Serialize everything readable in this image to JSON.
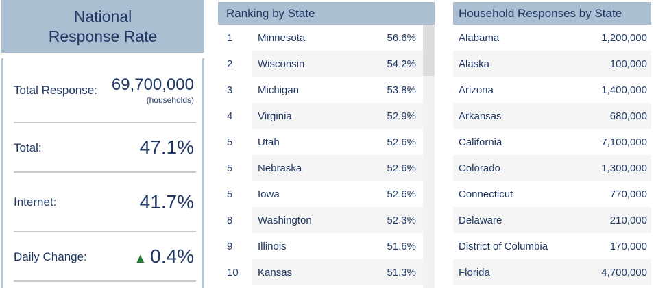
{
  "colors": {
    "header_bg": "#acbfd2",
    "text_navy": "#1f3864",
    "row_alt": "#f5f5f5",
    "divider": "#c9c9c9",
    "panel_border": "#b5c5d6",
    "trend_up_green": "#1e7b34",
    "scrollbar_track": "#f1f1f1",
    "scrollbar_thumb": "#dcdcdc"
  },
  "icons": {
    "up_triangle": "▲"
  },
  "national": {
    "title_line1": "National",
    "title_line2": "Response Rate",
    "stats": [
      {
        "label": "Total Response:",
        "value": "69,700,000",
        "sub": "(households)"
      },
      {
        "label": "Total:",
        "value": "47.1%"
      },
      {
        "label": "Internet:",
        "value": "41.7%"
      },
      {
        "label": "Daily Change:",
        "value": "0.4%",
        "trend": "up"
      }
    ]
  },
  "ranking": {
    "title": "Ranking by State",
    "columns": [
      "rank",
      "state",
      "response_rate"
    ],
    "rows": [
      {
        "rank": "1",
        "state": "Minnesota",
        "rate": "56.6%"
      },
      {
        "rank": "2",
        "state": "Wisconsin",
        "rate": "54.2%"
      },
      {
        "rank": "3",
        "state": "Michigan",
        "rate": "53.8%"
      },
      {
        "rank": "4",
        "state": "Virginia",
        "rate": "52.9%"
      },
      {
        "rank": "5",
        "state": "Utah",
        "rate": "52.6%"
      },
      {
        "rank": "5",
        "state": "Nebraska",
        "rate": "52.6%"
      },
      {
        "rank": "5",
        "state": "Iowa",
        "rate": "52.6%"
      },
      {
        "rank": "8",
        "state": "Washington",
        "rate": "52.3%"
      },
      {
        "rank": "9",
        "state": "Illinois",
        "rate": "51.6%"
      },
      {
        "rank": "10",
        "state": "Kansas",
        "rate": "51.3%"
      }
    ]
  },
  "households": {
    "title": "Household Responses by State",
    "columns": [
      "state",
      "households"
    ],
    "rows": [
      {
        "state": "Alabama",
        "value": "1,200,000"
      },
      {
        "state": "Alaska",
        "value": "100,000"
      },
      {
        "state": "Arizona",
        "value": "1,400,000"
      },
      {
        "state": "Arkansas",
        "value": "680,000"
      },
      {
        "state": "California",
        "value": "7,100,000"
      },
      {
        "state": "Colorado",
        "value": "1,300,000"
      },
      {
        "state": "Connecticut",
        "value": "770,000"
      },
      {
        "state": "Delaware",
        "value": "210,000"
      },
      {
        "state": "District of Columbia",
        "value": "170,000"
      },
      {
        "state": "Florida",
        "value": "4,700,000"
      }
    ]
  }
}
